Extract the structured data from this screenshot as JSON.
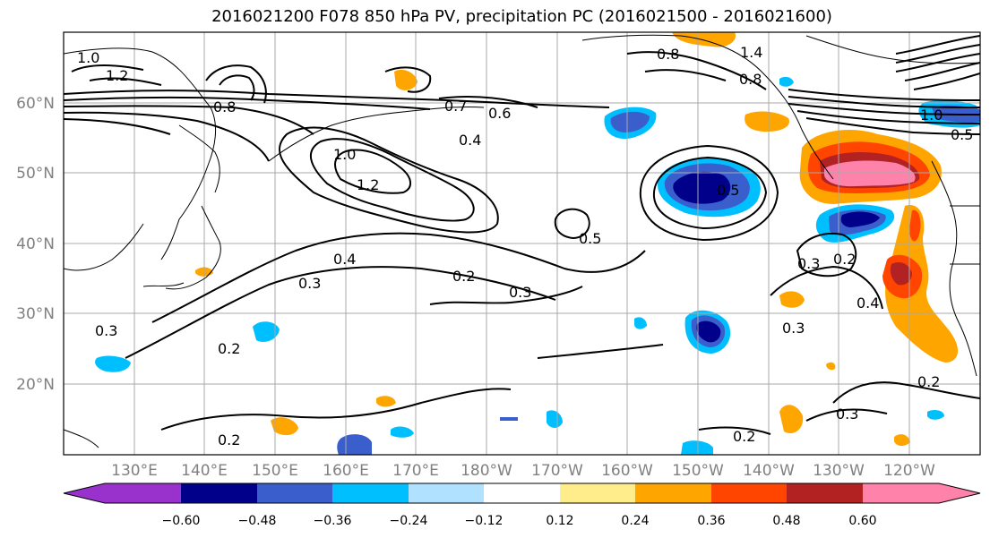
{
  "title": "2016021200 F078 850 hPa PV, precipitation PC (2016021500 - 2016021600)",
  "map": {
    "lon_labels": [
      "130°E",
      "140°E",
      "150°E",
      "160°E",
      "170°E",
      "180°W",
      "170°W",
      "160°W",
      "150°W",
      "140°W",
      "130°W",
      "120°W"
    ],
    "lat_labels": [
      "60°N",
      "50°N",
      "40°N",
      "30°N",
      "20°N"
    ],
    "grid": true
  },
  "contour_labels": [
    "1.0",
    "1.2",
    "0.8",
    "0.7",
    "0.6",
    "0.4",
    "1.0",
    "1.2",
    "0.5",
    "0.5",
    "0.4",
    "0.3",
    "0.2",
    "0.3",
    "0.2",
    "0.3",
    "0.2",
    "0.3",
    "0.2",
    "0.3",
    "0.2",
    "0.4",
    "0.3",
    "0.8",
    "1.4",
    "0.8",
    "1.0",
    "0.5"
  ],
  "colorbar": {
    "ticks": [
      "−0.60",
      "−0.48",
      "−0.36",
      "−0.24",
      "−0.12",
      "0.12",
      "0.24",
      "0.36",
      "0.48",
      "0.60"
    ],
    "colors": [
      "#9932cc",
      "#00008b",
      "#3a5fcd",
      "#00bfff",
      "#b0e2ff",
      "#ffffff",
      "#ffec8b",
      "#ffa500",
      "#ff4500",
      "#b22222",
      "#ff82ab"
    ]
  }
}
